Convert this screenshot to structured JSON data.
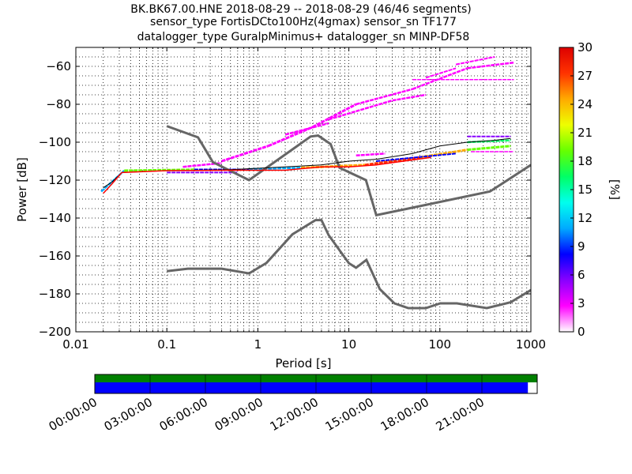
{
  "chart_data": {
    "type": "heatmap",
    "title_lines": [
      "BK.BK67.00.HNE   2018-08-29 -- 2018-08-29  (46/46 segments)",
      "sensor_type FortisDCto100Hz(4gmax) sensor_sn TF177",
      "datalogger_type GuralpMinimus+ datalogger_sn MINP-DF58"
    ],
    "xlabel": "Period [s]",
    "ylabel": "Power [dB]",
    "x_scale": "log",
    "xlim": [
      0.01,
      1000
    ],
    "ylim": [
      -200,
      -50
    ],
    "x_ticks": [
      {
        "v": 0.01,
        "label": "0.01"
      },
      {
        "v": 0.1,
        "label": "0.1"
      },
      {
        "v": 1,
        "label": "1"
      },
      {
        "v": 10,
        "label": "10"
      },
      {
        "v": 100,
        "label": "100"
      },
      {
        "v": 1000,
        "label": "1000"
      }
    ],
    "y_ticks": [
      {
        "v": -60,
        "label": "−60"
      },
      {
        "v": -80,
        "label": "−80"
      },
      {
        "v": -100,
        "label": "−100"
      },
      {
        "v": -120,
        "label": "−120"
      },
      {
        "v": -140,
        "label": "−140"
      },
      {
        "v": -160,
        "label": "−160"
      },
      {
        "v": -180,
        "label": "−180"
      },
      {
        "v": -200,
        "label": "−200"
      }
    ],
    "grid": true,
    "colorbar": {
      "label": "[%]",
      "min": 0,
      "max": 30,
      "ticks": [
        {
          "v": 0,
          "label": "0"
        },
        {
          "v": 3,
          "label": "3"
        },
        {
          "v": 6,
          "label": "6"
        },
        {
          "v": 9,
          "label": "9"
        },
        {
          "v": 12,
          "label": "12"
        },
        {
          "v": 15,
          "label": "15"
        },
        {
          "v": 18,
          "label": "18"
        },
        {
          "v": 21,
          "label": "21"
        },
        {
          "v": 24,
          "label": "24"
        },
        {
          "v": 27,
          "label": "27"
        },
        {
          "v": 30,
          "label": "30"
        }
      ],
      "colors": [
        "#ffffff",
        "#ff00ff",
        "#8800ff",
        "#0000ff",
        "#00aaff",
        "#00ffee",
        "#00ff66",
        "#66ff00",
        "#eeff00",
        "#ffaa00",
        "#ff3300",
        "#dd0000"
      ]
    },
    "noise_models": {
      "color": "#666666",
      "high_noise_model": [
        [
          0.1,
          -91.5
        ],
        [
          0.22,
          -97.4
        ],
        [
          0.32,
          -110.5
        ],
        [
          0.8,
          -120
        ],
        [
          3.8,
          -97
        ],
        [
          4.6,
          -96.5
        ],
        [
          6.3,
          -101
        ],
        [
          7.9,
          -113.5
        ],
        [
          15.4,
          -120
        ],
        [
          20,
          -138.5
        ],
        [
          354.8,
          -126
        ],
        [
          1000,
          -112
        ]
      ],
      "low_noise_model": [
        [
          0.1,
          -168
        ],
        [
          0.17,
          -166.7
        ],
        [
          0.4,
          -166.7
        ],
        [
          0.8,
          -169.2
        ],
        [
          1.24,
          -163.7
        ],
        [
          2.4,
          -148.6
        ],
        [
          4.3,
          -141.1
        ],
        [
          5,
          -141.1
        ],
        [
          6,
          -149
        ],
        [
          10,
          -163.8
        ],
        [
          12,
          -166.2
        ],
        [
          15.6,
          -162.1
        ],
        [
          21.9,
          -177.5
        ],
        [
          31.6,
          -185
        ],
        [
          45,
          -187.5
        ],
        [
          70,
          -187.5
        ],
        [
          101,
          -185
        ],
        [
          154,
          -185
        ],
        [
          328,
          -187.5
        ],
        [
          600,
          -184.4
        ],
        [
          1000,
          -178
        ]
      ]
    },
    "mean_line": {
      "color": "#000000",
      "points": [
        [
          0.02,
          -124
        ],
        [
          0.025,
          -121
        ],
        [
          0.032,
          -116
        ],
        [
          0.1,
          -115
        ],
        [
          0.5,
          -114.5
        ],
        [
          2,
          -113
        ],
        [
          5,
          -112
        ],
        [
          10,
          -110
        ],
        [
          20,
          -109
        ],
        [
          50,
          -106
        ],
        [
          100,
          -102
        ],
        [
          200,
          -100
        ],
        [
          400,
          -99
        ],
        [
          600,
          -98
        ]
      ]
    },
    "mode_line": {
      "color": "#ff0000",
      "points": [
        [
          0.02,
          -127
        ],
        [
          0.025,
          -122
        ],
        [
          0.032,
          -116
        ],
        [
          0.1,
          -115
        ],
        [
          0.5,
          -114.8
        ],
        [
          2,
          -114.8
        ],
        [
          5,
          -113
        ],
        [
          10,
          -113
        ],
        [
          20,
          -112
        ],
        [
          40,
          -110
        ],
        [
          80,
          -108
        ]
      ]
    },
    "density_bands": [
      {
        "x": [
          0.019,
          0.034
        ],
        "y": [
          -126,
          -115
        ],
        "pct": 12,
        "width": 2.5
      },
      {
        "x": [
          0.034,
          0.2
        ],
        "y": [
          -115,
          -114.5
        ],
        "pct": 18,
        "width": 3
      },
      {
        "x": [
          0.2,
          0.8
        ],
        "y": [
          -114.5,
          -114.5
        ],
        "pct": 9,
        "width": 2.5
      },
      {
        "x": [
          0.8,
          3
        ],
        "y": [
          -114.2,
          -113.5
        ],
        "pct": 12,
        "width": 2.5
      },
      {
        "x": [
          3,
          15
        ],
        "y": [
          -113.5,
          -112
        ],
        "pct": 24,
        "width": 3
      },
      {
        "x": [
          15,
          60
        ],
        "y": [
          -112,
          -108
        ],
        "pct": 27,
        "width": 3
      },
      {
        "x": [
          60,
          200
        ],
        "y": [
          -108,
          -104
        ],
        "pct": 24,
        "width": 3
      },
      {
        "x": [
          200,
          600
        ],
        "y": [
          -104,
          -102
        ],
        "pct": 19,
        "width": 3
      },
      {
        "x": [
          200,
          600
        ],
        "y": [
          -100,
          -99
        ],
        "pct": 15,
        "width": 2.5
      },
      {
        "x": [
          200,
          600
        ],
        "y": [
          -97,
          -97
        ],
        "pct": 5,
        "width": 2
      },
      {
        "x": [
          0.1,
          0.6
        ],
        "y": [
          -116,
          -116
        ],
        "pct": 6,
        "width": 2
      },
      {
        "x": [
          20,
          150
        ],
        "y": [
          -110,
          -106
        ],
        "pct": 9,
        "width": 2
      },
      {
        "x": [
          0.15,
          0.4
        ],
        "y": [
          -113,
          -111
        ],
        "pct": 3,
        "width": 2.5
      },
      {
        "x": [
          0.4,
          1.3
        ],
        "y": [
          -110,
          -102
        ],
        "pct": 3,
        "width": 3
      },
      {
        "x": [
          1.3,
          4
        ],
        "y": [
          -102,
          -92
        ],
        "pct": 2,
        "width": 3
      },
      {
        "x": [
          4,
          12
        ],
        "y": [
          -92,
          -80
        ],
        "pct": 2,
        "width": 3
      },
      {
        "x": [
          12,
          50
        ],
        "y": [
          -80,
          -72
        ],
        "pct": 2,
        "width": 2.5
      },
      {
        "x": [
          50,
          200
        ],
        "y": [
          -72,
          -61
        ],
        "pct": 2,
        "width": 2.5
      },
      {
        "x": [
          200,
          650
        ],
        "y": [
          -61,
          -58
        ],
        "pct": 2,
        "width": 2.5
      },
      {
        "x": [
          2,
          6
        ],
        "y": [
          -96,
          -90
        ],
        "pct": 3,
        "width": 2.5
      },
      {
        "x": [
          6,
          30
        ],
        "y": [
          -88,
          -78
        ],
        "pct": 2,
        "width": 2.5
      },
      {
        "x": [
          30,
          70
        ],
        "y": [
          -78,
          -75
        ],
        "pct": 2,
        "width": 2.5
      },
      {
        "x": [
          12,
          25
        ],
        "y": [
          -107,
          -106
        ],
        "pct": 2,
        "width": 2.5
      },
      {
        "x": [
          70,
          150
        ],
        "y": [
          -66,
          -61
        ],
        "pct": 2,
        "width": 2
      },
      {
        "x": [
          150,
          400
        ],
        "y": [
          -59,
          -55
        ],
        "pct": 2,
        "width": 2
      },
      {
        "x": [
          50,
          650
        ],
        "y": [
          -67,
          -67
        ],
        "pct": 3,
        "width": 1.5
      },
      {
        "x": [
          220,
          650
        ],
        "y": [
          -105,
          -105
        ],
        "pct": 3,
        "width": 1.5
      }
    ],
    "time_coverage": {
      "tick_labels": [
        "00:00:00",
        "03:00:00",
        "06:00:00",
        "09:00:00",
        "12:00:00",
        "15:00:00",
        "18:00:00",
        "21:00:00"
      ],
      "data_color": "#008000",
      "gap_color": "#0000ff",
      "data_coverage": 1.0,
      "processed_coverage": 0.979
    }
  }
}
